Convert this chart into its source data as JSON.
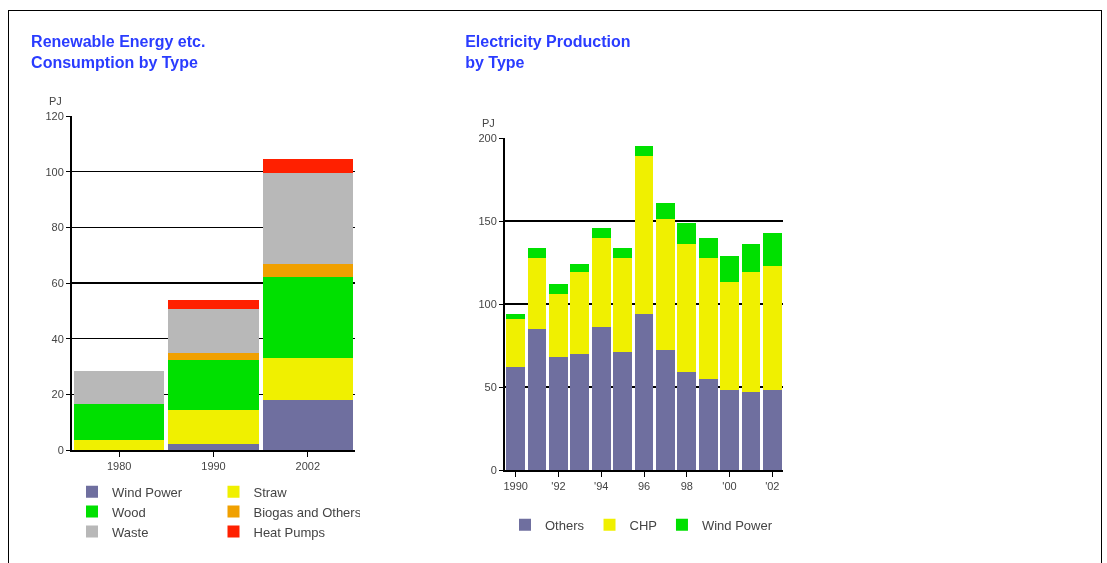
{
  "chart_data": [
    {
      "type": "bar",
      "stacked": true,
      "title": "Renewable Energy etc.\nConsumption by Type",
      "ylabel": "PJ",
      "categories": [
        "1980",
        "1990",
        "2002"
      ],
      "ylim": [
        0,
        120
      ],
      "yticks": [
        0,
        20,
        40,
        60,
        80,
        100,
        120
      ],
      "grid": "y",
      "legend": "bottom",
      "series": [
        {
          "name": "Wind Power",
          "color": "#6f6f9f",
          "values": [
            0,
            2,
            18
          ]
        },
        {
          "name": "Straw",
          "color": "#f0f000",
          "values": [
            3.5,
            12.5,
            15
          ]
        },
        {
          "name": "Wood",
          "color": "#00e000",
          "values": [
            13,
            18,
            29
          ]
        },
        {
          "name": "Biogas and Others",
          "color": "#f0a000",
          "values": [
            0,
            2.5,
            5
          ]
        },
        {
          "name": "Waste",
          "color": "#b8b8b8",
          "values": [
            12,
            15.5,
            32.5
          ]
        },
        {
          "name": "Heat Pumps",
          "color": "#ff2000",
          "values": [
            0,
            3.5,
            5
          ]
        }
      ]
    },
    {
      "type": "bar",
      "stacked": true,
      "title": "Electricity Production\nby Type",
      "ylabel": "PJ",
      "categories": [
        "1990",
        null,
        "'92",
        null,
        "'94",
        null,
        "96",
        null,
        "98",
        null,
        "'00",
        null,
        "'02"
      ],
      "ylim": [
        0,
        200
      ],
      "yticks": [
        0,
        50,
        100,
        150,
        200
      ],
      "grid": "y",
      "legend": "bottom",
      "series": [
        {
          "name": "Others",
          "color": "#6f6f9f",
          "values": [
            62,
            85,
            68,
            70,
            86,
            71,
            94,
            72,
            59,
            55,
            48,
            47,
            48
          ]
        },
        {
          "name": "CHP",
          "color": "#f0f000",
          "values": [
            29,
            43,
            38,
            49,
            54,
            57,
            95,
            79,
            77,
            73,
            65,
            72,
            75
          ]
        },
        {
          "name": "Wind Power",
          "color": "#00e000",
          "values": [
            3,
            6,
            6,
            5,
            6,
            6,
            6,
            10,
            13,
            12,
            16,
            17,
            20
          ]
        }
      ]
    }
  ]
}
